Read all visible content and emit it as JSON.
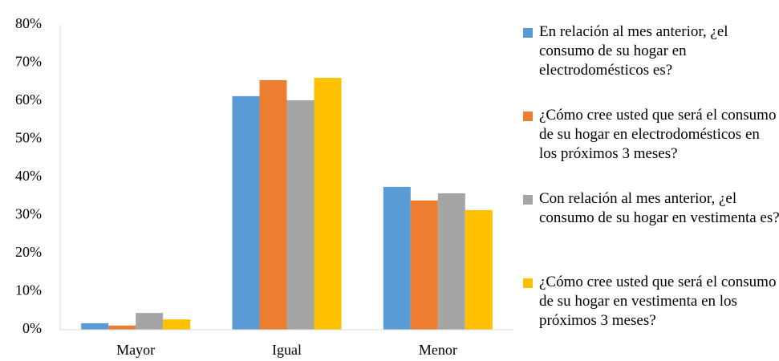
{
  "chart_data": {
    "type": "bar",
    "categories": [
      "Mayor",
      "Igual",
      "Menor"
    ],
    "series": [
      {
        "name": "En relación al mes anterior, ¿el consumo de su hogar en electrodomésticos es?",
        "color": "#5b9bd5",
        "values": [
          1.7,
          61.3,
          37.5
        ]
      },
      {
        "name": "¿Cómo cree usted que será el consumo de su hogar en electrodomésticos en los próximos 3 meses?",
        "color": "#ed7d31",
        "values": [
          1.1,
          65.5,
          33.9
        ]
      },
      {
        "name": "Con relación al mes anterior, ¿el consumo de su hogar en vestimenta es?",
        "color": "#a5a5a5",
        "values": [
          4.4,
          60.2,
          35.8
        ]
      },
      {
        "name": "¿Cómo cree usted que será el consumo de su hogar en vestimenta en los próximos 3 meses?",
        "color": "#ffc000",
        "values": [
          2.7,
          66.1,
          31.4
        ]
      }
    ],
    "ylim": [
      0,
      80
    ],
    "yticks": [
      {
        "value": 0,
        "label": "0%"
      },
      {
        "value": 10,
        "label": "10%"
      },
      {
        "value": 20,
        "label": "20%"
      },
      {
        "value": 30,
        "label": "30%"
      },
      {
        "value": 40,
        "label": "40%"
      },
      {
        "value": 50,
        "label": "50%"
      },
      {
        "value": 60,
        "label": "60%"
      },
      {
        "value": 70,
        "label": "70%"
      },
      {
        "value": 80,
        "label": "80%"
      }
    ],
    "grid": false,
    "legend": "right"
  }
}
